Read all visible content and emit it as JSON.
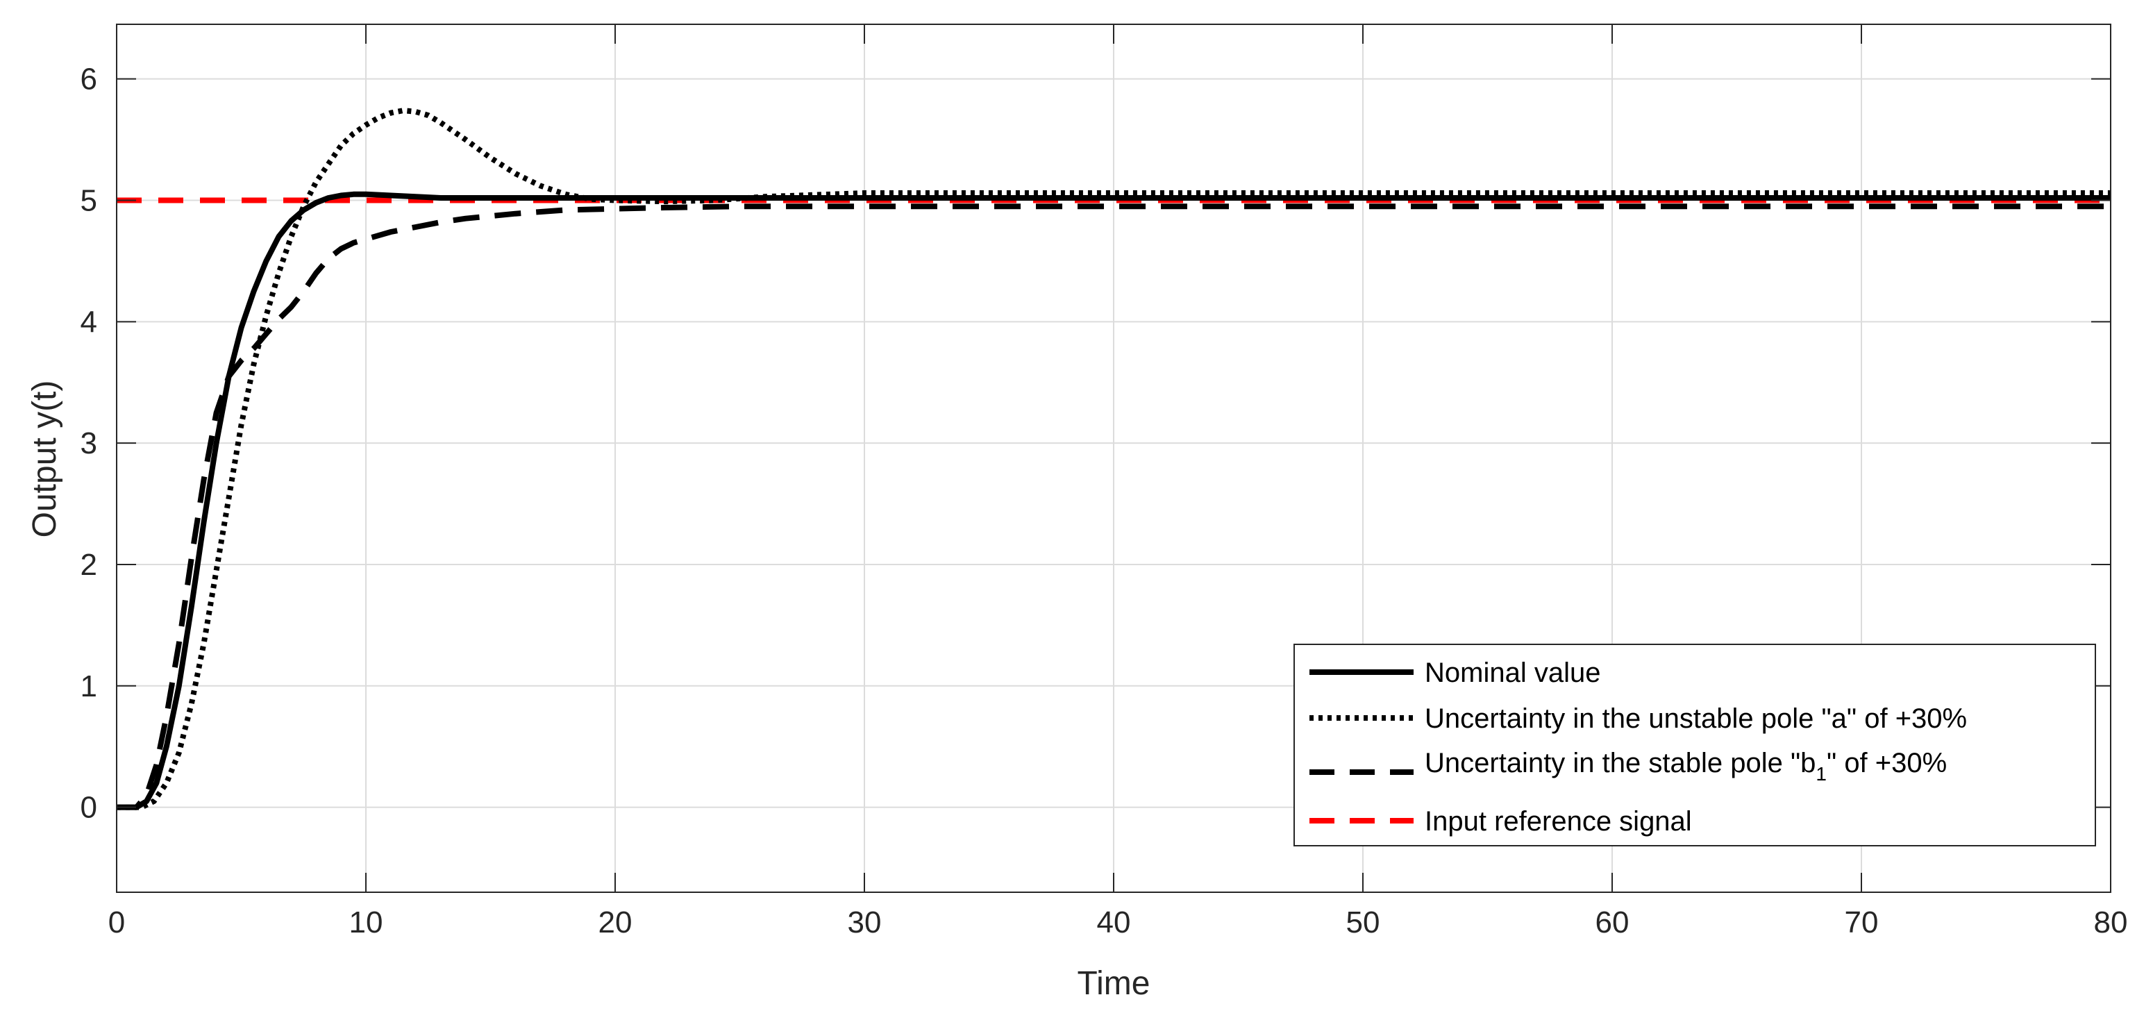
{
  "chart_data": {
    "type": "line",
    "title": "",
    "xlabel": "Time",
    "ylabel": "Output y(t)",
    "xlim": [
      0,
      80
    ],
    "ylim": [
      -0.7,
      6.45
    ],
    "xticks": [
      0,
      10,
      20,
      30,
      40,
      50,
      60,
      70,
      80
    ],
    "yticks": [
      0,
      1,
      2,
      3,
      4,
      5,
      6
    ],
    "grid": true,
    "legend_position": "bottom-right",
    "series": [
      {
        "name": "Nominal value",
        "style": "solid",
        "color": "#000000",
        "x": [
          0,
          0.8,
          1.2,
          1.6,
          2.0,
          2.5,
          3.0,
          3.5,
          4.0,
          4.5,
          5.0,
          5.5,
          6.0,
          6.5,
          7.0,
          7.5,
          8.0,
          8.5,
          9.0,
          9.5,
          10.0,
          11.0,
          12.0,
          13.0,
          15.0,
          20.0,
          30.0,
          40.0,
          50.0,
          60.0,
          70.0,
          80.0
        ],
        "y": [
          0,
          0,
          0.05,
          0.2,
          0.5,
          1.0,
          1.65,
          2.35,
          3.0,
          3.55,
          3.95,
          4.25,
          4.5,
          4.7,
          4.83,
          4.92,
          4.98,
          5.02,
          5.04,
          5.05,
          5.05,
          5.04,
          5.03,
          5.02,
          5.02,
          5.02,
          5.02,
          5.02,
          5.02,
          5.02,
          5.02,
          5.02
        ]
      },
      {
        "name": "Uncertainty in the unstable pole \"a\" of +30%",
        "style": "dotted",
        "color": "#000000",
        "x": [
          0,
          1.0,
          1.5,
          2.0,
          2.5,
          3.0,
          3.5,
          4.0,
          4.5,
          5.0,
          5.5,
          6.0,
          6.5,
          7.0,
          7.5,
          8.0,
          8.5,
          9.0,
          9.5,
          10.0,
          10.5,
          11.0,
          11.5,
          12.0,
          12.5,
          13.0,
          14.0,
          15.0,
          16.0,
          17.0,
          18.0,
          19.0,
          20.0,
          22.0,
          24.0,
          26.0,
          30.0,
          40.0,
          50.0,
          60.0,
          70.0,
          80.0
        ],
        "y": [
          0,
          0,
          0.05,
          0.2,
          0.45,
          0.85,
          1.35,
          1.95,
          2.55,
          3.15,
          3.65,
          4.05,
          4.4,
          4.7,
          4.95,
          5.15,
          5.3,
          5.45,
          5.55,
          5.62,
          5.68,
          5.72,
          5.74,
          5.73,
          5.7,
          5.64,
          5.5,
          5.35,
          5.22,
          5.12,
          5.05,
          5.01,
          5.0,
          4.99,
          5.0,
          5.03,
          5.06,
          5.06,
          5.06,
          5.06,
          5.06,
          5.06
        ]
      },
      {
        "name": "Uncertainty in the stable pole \"b1\" of +30%",
        "style": "dashed",
        "color": "#000000",
        "x": [
          0,
          0.8,
          1.2,
          1.6,
          2.0,
          2.5,
          3.0,
          3.5,
          4.0,
          4.5,
          5.0,
          5.5,
          6.0,
          6.5,
          7.0,
          7.5,
          8.0,
          8.5,
          9.0,
          9.5,
          10.0,
          11.0,
          12.0,
          13.0,
          14.0,
          15.0,
          16.0,
          18.0,
          20.0,
          22.0,
          25.0,
          30.0,
          40.0,
          50.0,
          60.0,
          70.0,
          80.0
        ],
        "y": [
          0,
          0,
          0.1,
          0.35,
          0.75,
          1.35,
          2.05,
          2.7,
          3.25,
          3.55,
          3.68,
          3.78,
          3.9,
          4.02,
          4.12,
          4.25,
          4.4,
          4.52,
          4.6,
          4.65,
          4.68,
          4.74,
          4.78,
          4.82,
          4.85,
          4.87,
          4.89,
          4.92,
          4.93,
          4.94,
          4.95,
          4.95,
          4.95,
          4.95,
          4.95,
          4.95,
          4.95
        ]
      },
      {
        "name": "Input reference signal",
        "style": "dashed",
        "color": "#ff0000",
        "x": [
          0,
          80
        ],
        "y": [
          5,
          5
        ]
      }
    ]
  }
}
